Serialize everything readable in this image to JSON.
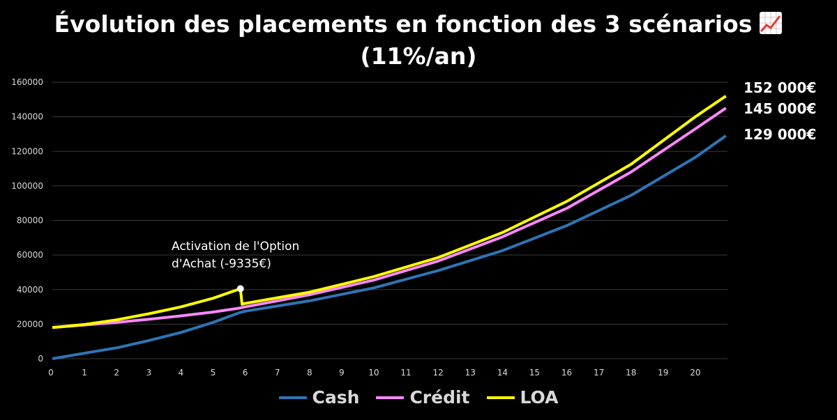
{
  "title_line1": "Évolution des placements en fonction des 3 scénarios",
  "title_line2": "(11%/an)",
  "title_icon": "chart-increasing-icon",
  "colors": {
    "background": "#000000",
    "cash": "#2e75b6",
    "credit": "#ff88ff",
    "loa": "#ffff00",
    "grid": "#3a3a3a",
    "axis_text": "#d9d9d9"
  },
  "end_labels": {
    "loa": "152 000€",
    "credit": "145 000€",
    "cash": "129 000€"
  },
  "annotation": {
    "line1": "Activation de l'Option",
    "line2": "d'Achat (-9335€)"
  },
  "chart_data": {
    "type": "line",
    "xlim": [
      0,
      21
    ],
    "ylim": [
      0,
      160000
    ],
    "x_ticks": [
      "0",
      "1",
      "2",
      "3",
      "4",
      "5",
      "6",
      "7",
      "8",
      "9",
      "10",
      "11",
      "12",
      "13",
      "14",
      "15",
      "16",
      "17",
      "18",
      "19",
      "20"
    ],
    "y_ticks": [
      "0",
      "20000",
      "40000",
      "60000",
      "80000",
      "100000",
      "120000",
      "140000",
      "160000"
    ],
    "grid": true,
    "legend_position": "bottom",
    "series": [
      {
        "name": "Cash",
        "x": [
          0,
          1,
          2,
          3,
          4,
          5,
          5.8,
          6,
          8,
          10,
          12,
          14,
          16,
          18,
          20,
          20.95
        ],
        "y": [
          0,
          3200,
          6300,
          10500,
          15200,
          21000,
          26500,
          27500,
          33500,
          41000,
          51000,
          62500,
          77000,
          94500,
          116500,
          129000
        ]
      },
      {
        "name": "Crédit",
        "x": [
          0,
          1,
          2,
          3,
          4,
          5,
          5.8,
          6,
          8,
          10,
          12,
          14,
          16,
          18,
          20,
          20.95
        ],
        "y": [
          18000,
          19500,
          21000,
          22800,
          24800,
          27000,
          29200,
          30000,
          37000,
          45500,
          56500,
          70500,
          87000,
          108000,
          133000,
          145000
        ]
      },
      {
        "name": "LOA",
        "x": [
          0,
          1,
          2,
          3,
          4,
          5,
          5.85,
          5.9,
          6,
          8,
          10,
          12,
          14,
          16,
          18,
          20,
          20.95
        ],
        "y": [
          18000,
          19800,
          22500,
          26000,
          30000,
          35000,
          40500,
          31500,
          32000,
          38500,
          47500,
          58500,
          73000,
          91000,
          112500,
          140000,
          152000
        ]
      }
    ],
    "annotations": [
      {
        "text": "Activation de l'Option d'Achat (-9335€)",
        "x": 5.85,
        "y": 40500
      }
    ]
  }
}
